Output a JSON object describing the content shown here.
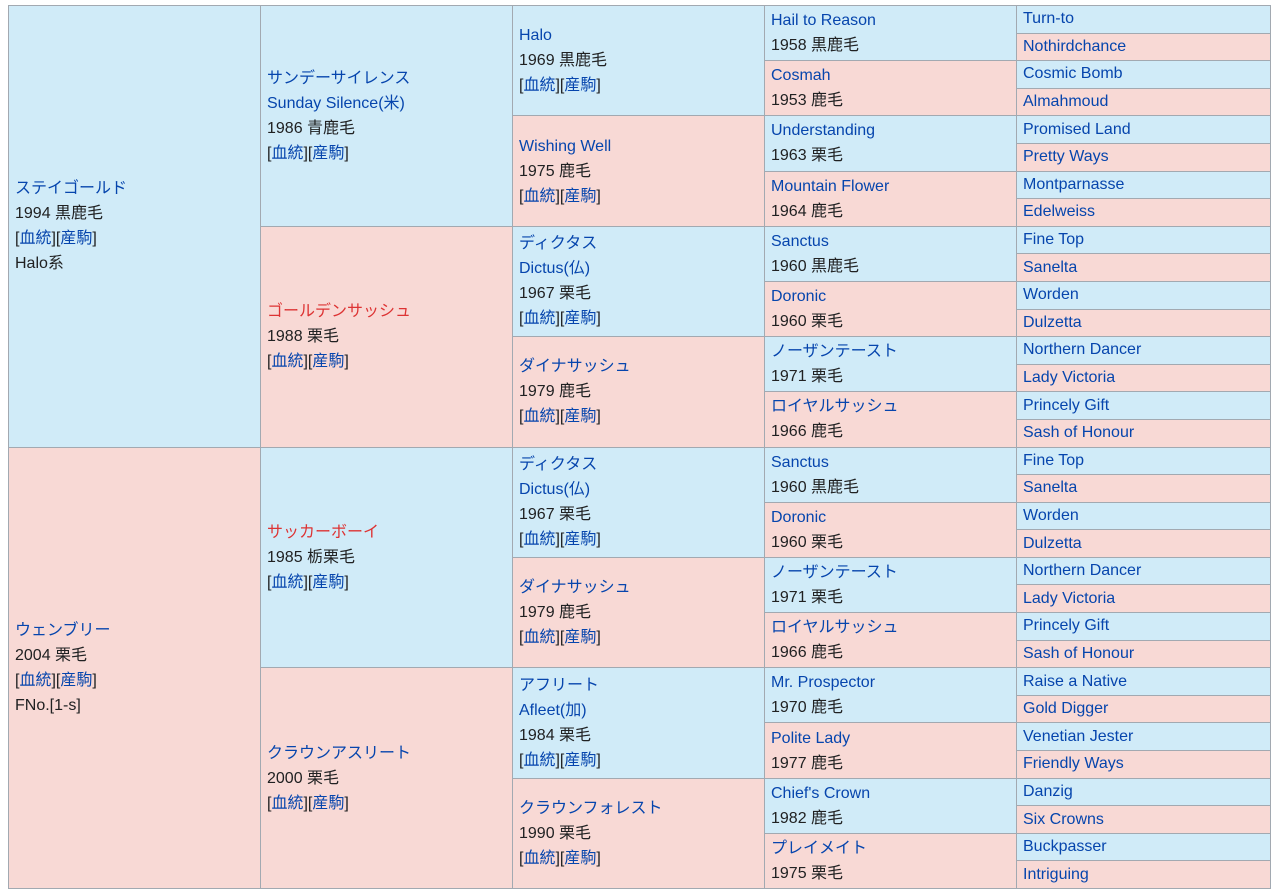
{
  "links": {
    "bloodline": "血統",
    "offspring": "産駒"
  },
  "sire": {
    "name": "ステイゴールド",
    "meta": "1994 黒鹿毛",
    "extra": "Halo系",
    "sire": {
      "name": "サンデーサイレンス",
      "name2": "Sunday Silence(米)",
      "meta": "1986 青鹿毛",
      "sire": {
        "name": "Halo",
        "meta": "1969 黒鹿毛",
        "sire": {
          "name": "Hail to Reason",
          "meta": "1958 黒鹿毛",
          "sire": "Turn-to",
          "dam": "Nothirdchance"
        },
        "dam": {
          "name": "Cosmah",
          "meta": "1953 鹿毛",
          "sire": "Cosmic Bomb",
          "dam": "Almahmoud"
        }
      },
      "dam": {
        "name": "Wishing Well",
        "meta": "1975 鹿毛",
        "sire": {
          "name": "Understanding",
          "meta": "1963 栗毛",
          "sire": "Promised Land",
          "dam": "Pretty Ways"
        },
        "dam": {
          "name": "Mountain Flower",
          "meta": "1964 鹿毛",
          "sire": "Montparnasse",
          "dam": "Edelweiss"
        }
      }
    },
    "dam": {
      "name": "ゴールデンサッシュ",
      "meta": "1988 栗毛",
      "sire": {
        "name": "ディクタス",
        "name2": "Dictus(仏)",
        "meta": "1967 栗毛",
        "sire": {
          "name": "Sanctus",
          "meta": "1960 黒鹿毛",
          "sire": "Fine Top",
          "dam": "Sanelta"
        },
        "dam": {
          "name": "Doronic",
          "meta": "1960 栗毛",
          "sire": "Worden",
          "dam": "Dulzetta"
        }
      },
      "dam": {
        "name": "ダイナサッシュ",
        "meta": "1979 鹿毛",
        "sire": {
          "name": "ノーザンテースト",
          "meta": "1971 栗毛",
          "sire": "Northern Dancer",
          "dam": "Lady Victoria"
        },
        "dam": {
          "name": "ロイヤルサッシュ",
          "meta": "1966 鹿毛",
          "sire": "Princely Gift",
          "dam": "Sash of Honour"
        }
      }
    }
  },
  "dam": {
    "name": "ウェンブリー",
    "meta": "2004 栗毛",
    "extra": "FNo.[1-s]",
    "sire": {
      "name": "サッカーボーイ",
      "meta": "1985 栃栗毛",
      "sire": {
        "name": "ディクタス",
        "name2": "Dictus(仏)",
        "meta": "1967 栗毛",
        "sire": {
          "name": "Sanctus",
          "meta": "1960 黒鹿毛",
          "sire": "Fine Top",
          "dam": "Sanelta"
        },
        "dam": {
          "name": "Doronic",
          "meta": "1960 栗毛",
          "sire": "Worden",
          "dam": "Dulzetta"
        }
      },
      "dam": {
        "name": "ダイナサッシュ",
        "meta": "1979 鹿毛",
        "sire": {
          "name": "ノーザンテースト",
          "meta": "1971 栗毛",
          "sire": "Northern Dancer",
          "dam": "Lady Victoria"
        },
        "dam": {
          "name": "ロイヤルサッシュ",
          "meta": "1966 鹿毛",
          "sire": "Princely Gift",
          "dam": "Sash of Honour"
        }
      }
    },
    "dam": {
      "name": "クラウンアスリート",
      "meta": "2000 栗毛",
      "sire": {
        "name": "アフリート",
        "name2": "Afleet(加)",
        "meta": "1984 栗毛",
        "sire": {
          "name": "Mr. Prospector",
          "meta": "1970 鹿毛",
          "sire": "Raise a Native",
          "dam": "Gold Digger"
        },
        "dam": {
          "name": "Polite Lady",
          "meta": "1977 鹿毛",
          "sire": "Venetian Jester",
          "dam": "Friendly Ways"
        }
      },
      "dam": {
        "name": "クラウンフォレスト",
        "meta": "1990 栗毛",
        "sire": {
          "name": "Chief's Crown",
          "meta": "1982 鹿毛",
          "sire": "Danzig",
          "dam": "Six Crowns"
        },
        "dam": {
          "name": "プレイメイト",
          "meta": "1975 栗毛",
          "sire": "Buckpasser",
          "dam": "Intriguing"
        }
      }
    }
  }
}
